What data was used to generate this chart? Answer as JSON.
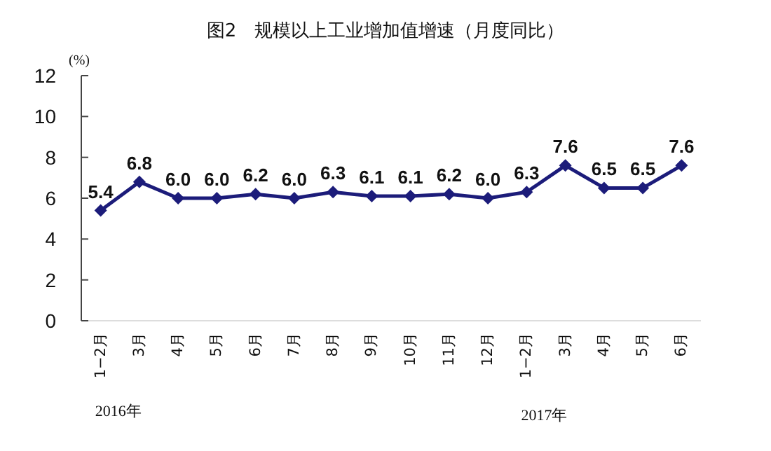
{
  "chart_data": {
    "type": "line",
    "title": "图2　规模以上工业增加值增速（月度同比）",
    "ylabel": "(%)",
    "categories": [
      "1−2月",
      "3月",
      "4月",
      "5月",
      "6月",
      "7月",
      "8月",
      "9月",
      "10月",
      "11月",
      "12月",
      "1−2月",
      "3月",
      "4月",
      "5月",
      "6月"
    ],
    "series": [
      {
        "color": "#1c1c7a",
        "values": [
          5.4,
          6.8,
          6.0,
          6.0,
          6.2,
          6.0,
          6.3,
          6.1,
          6.1,
          6.2,
          6.0,
          6.3,
          7.6,
          6.5,
          6.5,
          7.6
        ],
        "value_labels": [
          "5.4",
          "6.8",
          "6.0",
          "6.0",
          "6.2",
          "6.0",
          "6.3",
          "6.1",
          "6.1",
          "6.2",
          "6.0",
          "6.3",
          "7.6",
          "6.5",
          "6.5",
          "7.6"
        ]
      }
    ],
    "ylim": [
      0,
      12
    ],
    "yticks": [
      0,
      2,
      4,
      6,
      8,
      10,
      12
    ],
    "marker": "diamond",
    "line_style": "solid",
    "grid": false,
    "annotations": [
      "2016年",
      "2017年"
    ]
  }
}
